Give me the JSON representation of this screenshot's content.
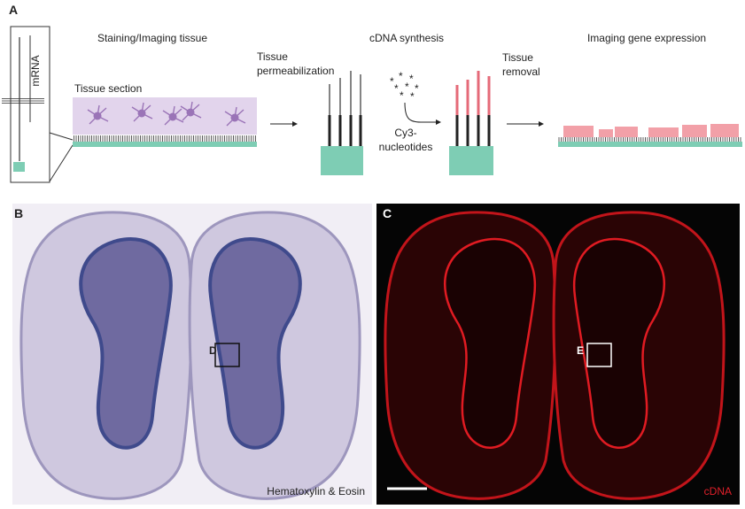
{
  "panel_a": {
    "label": "A",
    "mrna": "mRNA",
    "staining_title": "Staining/Imaging tissue",
    "tissue_section": "Tissue section",
    "permeabilization": {
      "lines": [
        "Tissue",
        "permeabilization"
      ]
    },
    "cdna_title": "cDNA synthesis",
    "nucleotides": {
      "lines": [
        "Cy3-",
        "nucleotides"
      ]
    },
    "removal": {
      "lines": [
        "Tissue",
        "removal"
      ]
    },
    "imaging_title": "Imaging gene expression"
  },
  "panel_b": {
    "label": "B",
    "inset_label": "D",
    "stain": "Hematoxylin & Eosin"
  },
  "panel_c": {
    "label": "C",
    "inset_label": "E",
    "channel": "cDNA"
  }
}
